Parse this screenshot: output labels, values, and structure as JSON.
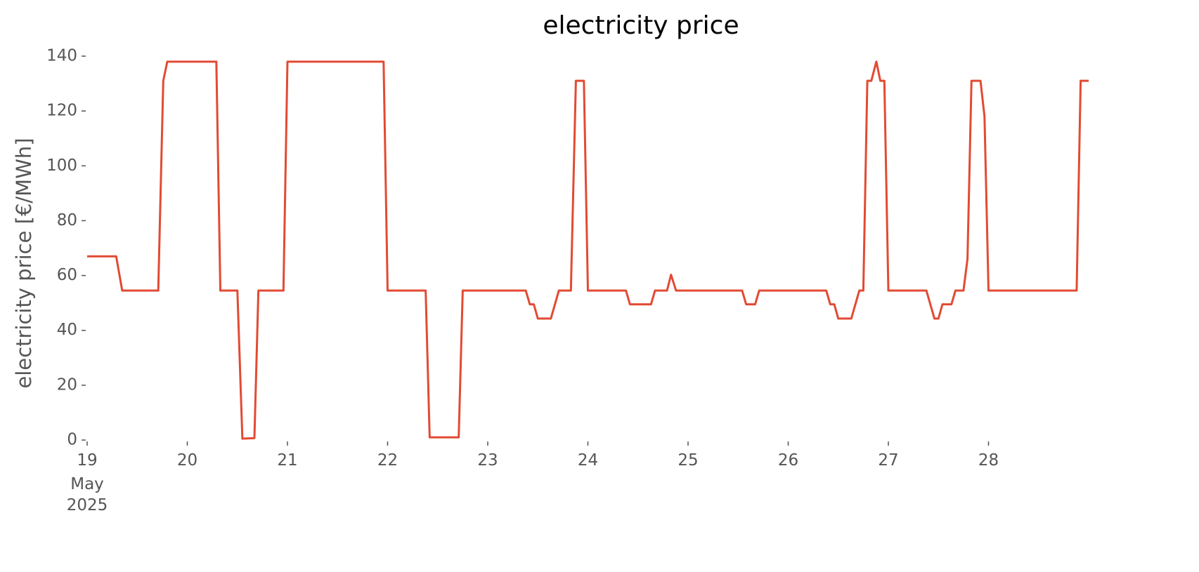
{
  "chart_data": {
    "type": "line",
    "title": "electricity price",
    "ylabel": "electricity price [€/MWh]",
    "x_period_label": [
      "May",
      "2025"
    ],
    "x": [
      19.0,
      19.29,
      19.35,
      19.71,
      19.76,
      19.8,
      20.29,
      20.33,
      20.5,
      20.55,
      20.67,
      20.71,
      20.96,
      21.0,
      21.96,
      22.0,
      22.38,
      22.42,
      22.71,
      22.75,
      23.38,
      23.42,
      23.46,
      23.5,
      23.63,
      23.71,
      23.83,
      23.88,
      23.96,
      24.0,
      24.38,
      24.42,
      24.63,
      24.67,
      24.79,
      24.83,
      24.88,
      25.54,
      25.58,
      25.67,
      25.71,
      26.38,
      26.42,
      26.46,
      26.5,
      26.63,
      26.71,
      26.75,
      26.79,
      26.83,
      26.88,
      26.92,
      26.96,
      27.0,
      27.38,
      27.46,
      27.5,
      27.54,
      27.63,
      27.67,
      27.75,
      27.79,
      27.83,
      27.92,
      27.96,
      28.0,
      28.88,
      28.92,
      29.0
    ],
    "series": [
      {
        "name": "electricity price",
        "color": "#e24a33",
        "values": [
          67,
          67,
          54.5,
          54.5,
          131,
          138,
          138,
          54.5,
          54.5,
          0.5,
          0.7,
          54.5,
          54.5,
          138,
          138,
          54.5,
          54.5,
          1,
          1,
          54.5,
          54.5,
          49.5,
          49.5,
          44.3,
          44.3,
          54.5,
          54.5,
          131,
          131,
          54.5,
          54.5,
          49.5,
          49.5,
          54.5,
          54.5,
          60.3,
          54.5,
          54.5,
          49.5,
          49.5,
          54.5,
          54.5,
          49.5,
          49.5,
          44.3,
          44.3,
          54.5,
          54.5,
          131,
          131,
          138,
          131,
          131,
          54.5,
          54.5,
          44.3,
          44.3,
          49.5,
          49.5,
          54.5,
          54.5,
          66,
          131,
          131,
          118,
          54.5,
          54.5,
          131,
          131
        ]
      }
    ],
    "xlim": [
      19,
      29
    ],
    "xticks": [
      19,
      20,
      21,
      22,
      23,
      24,
      25,
      26,
      27,
      28
    ],
    "ylim": [
      0,
      140
    ],
    "yticks": [
      0,
      20,
      40,
      60,
      80,
      100,
      120,
      140
    ],
    "grid": false
  }
}
